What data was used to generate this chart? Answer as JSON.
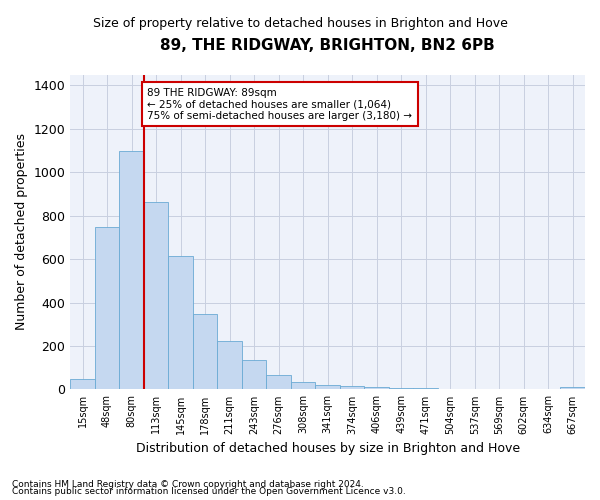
{
  "title": "89, THE RIDGWAY, BRIGHTON, BN2 6PB",
  "subtitle": "Size of property relative to detached houses in Brighton and Hove",
  "xlabel": "Distribution of detached houses by size in Brighton and Hove",
  "ylabel": "Number of detached properties",
  "footnote1": "Contains HM Land Registry data © Crown copyright and database right 2024.",
  "footnote2": "Contains public sector information licensed under the Open Government Licence v3.0.",
  "categories": [
    "15sqm",
    "48sqm",
    "80sqm",
    "113sqm",
    "145sqm",
    "178sqm",
    "211sqm",
    "243sqm",
    "276sqm",
    "308sqm",
    "341sqm",
    "374sqm",
    "406sqm",
    "439sqm",
    "471sqm",
    "504sqm",
    "537sqm",
    "569sqm",
    "602sqm",
    "634sqm",
    "667sqm"
  ],
  "bar_heights": [
    50,
    750,
    1100,
    865,
    615,
    345,
    225,
    135,
    68,
    35,
    20,
    15,
    12,
    5,
    5,
    3,
    2,
    1,
    1,
    0,
    10
  ],
  "ylim": [
    0,
    1450
  ],
  "yticks": [
    0,
    200,
    400,
    600,
    800,
    1000,
    1200,
    1400
  ],
  "bar_color": "#c5d8f0",
  "bar_edgecolor": "#6aaad4",
  "grid_color": "#c8cfe0",
  "background_color": "#eef2fa",
  "vline_color": "#cc0000",
  "vline_pos": 2.5,
  "annotation_text": "89 THE RIDGWAY: 89sqm\n← 25% of detached houses are smaller (1,064)\n75% of semi-detached houses are larger (3,180) →",
  "annotation_box_color": "#cc0000",
  "title_fontsize": 11,
  "subtitle_fontsize": 9,
  "ylabel_fontsize": 9,
  "xlabel_fontsize": 9
}
